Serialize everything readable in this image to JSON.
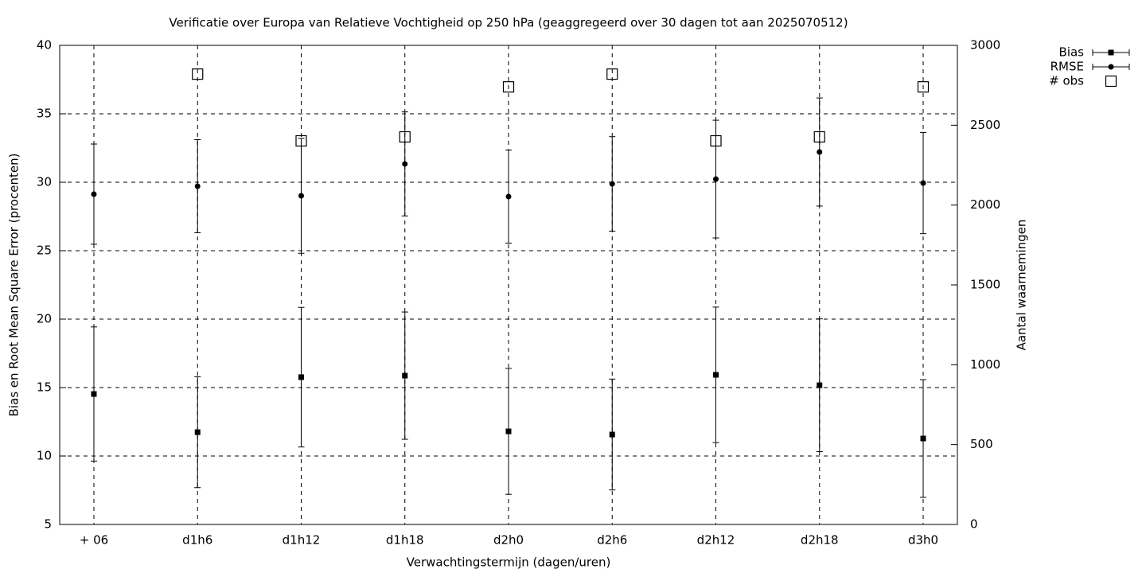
{
  "chart_data": {
    "type": "errorbar",
    "title": "Verificatie over Europa van Relatieve Vochtigheid op 250 hPa (geaggregeerd over 30 dagen tot aan 2025070512)",
    "x_label": "Verwachtingstermijn (dagen/uren)",
    "y_label": "Bias en Root Mean Square Error (procenten)",
    "y2_label": "Aantal waarnemingen",
    "categories": [
      "+ 06",
      "d1h6",
      "d1h12",
      "d1h18",
      "d2h0",
      "d2h6",
      "d2h12",
      "d2h18",
      "d3h0"
    ],
    "ylim": [
      5,
      40
    ],
    "yticks": [
      5,
      10,
      15,
      20,
      25,
      30,
      35,
      40
    ],
    "y2lim": [
      0,
      3000
    ],
    "y2ticks": [
      0,
      500,
      1000,
      1500,
      2000,
      2500,
      3000
    ],
    "grid": true,
    "legend": "top-right",
    "series": [
      {
        "name": "Bias",
        "color": "#000000",
        "marker": "square",
        "values": [
          14.53,
          11.74,
          15.76,
          15.87,
          11.8,
          11.57,
          15.93,
          15.17,
          11.28
        ],
        "errors": [
          4.9,
          4.05,
          5.1,
          4.65,
          4.6,
          4.05,
          4.95,
          4.85,
          4.3
        ]
      },
      {
        "name": "RMSE",
        "color": "#000000",
        "marker": "circle",
        "values": [
          29.13,
          29.71,
          29.01,
          31.34,
          28.95,
          29.88,
          30.23,
          32.21,
          29.94
        ],
        "errors": [
          3.66,
          3.4,
          4.2,
          3.8,
          3.4,
          3.45,
          4.3,
          3.95,
          3.7
        ]
      },
      {
        "name": "# obs",
        "color": "#000000",
        "marker": "open-square",
        "axis": "y2",
        "values": [
          null,
          2820,
          2402,
          2427,
          2740,
          2820,
          2402,
          2427,
          2740
        ]
      }
    ]
  }
}
